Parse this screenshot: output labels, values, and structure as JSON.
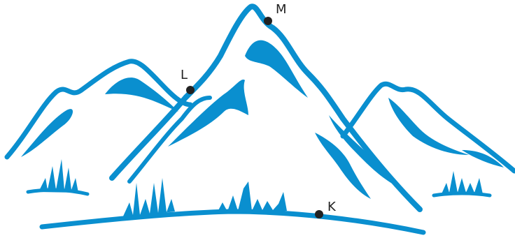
{
  "points": [
    {
      "label": "M"
    },
    {
      "label": "L"
    },
    {
      "label": "K"
    }
  ]
}
